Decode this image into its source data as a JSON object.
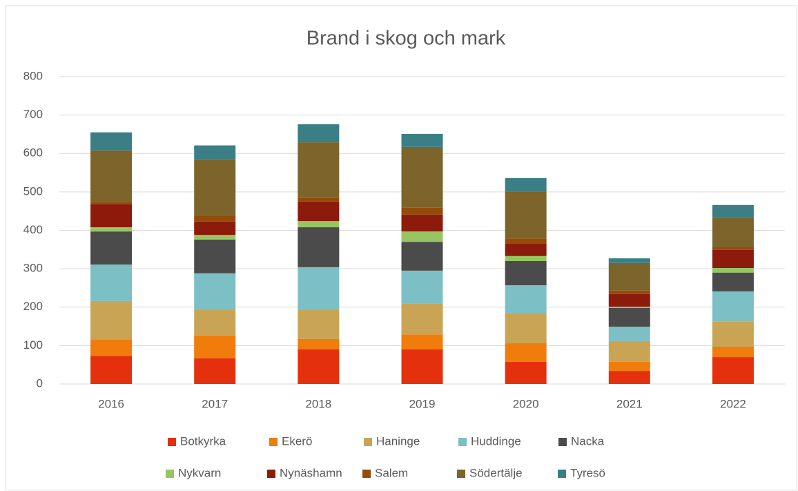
{
  "chart_data": {
    "type": "stacked-bar",
    "title": "Brand i skog och mark",
    "categories": [
      "2016",
      "2017",
      "2018",
      "2019",
      "2020",
      "2021",
      "2022"
    ],
    "series": [
      {
        "name": "Botkyrka",
        "color": "#e5300e",
        "values": [
          73,
          67,
          90,
          90,
          58,
          34,
          70
        ]
      },
      {
        "name": "Ekerö",
        "color": "#f07c0b",
        "values": [
          42,
          59,
          27,
          39,
          48,
          24,
          27
        ]
      },
      {
        "name": "Haninge",
        "color": "#c8a454",
        "values": [
          101,
          68,
          77,
          81,
          79,
          54,
          65
        ]
      },
      {
        "name": "Huddinge",
        "color": "#7cbfc5",
        "values": [
          95,
          94,
          110,
          85,
          72,
          37,
          79
        ]
      },
      {
        "name": "Nacka",
        "color": "#4b4b4b",
        "values": [
          86,
          88,
          104,
          75,
          63,
          49,
          49
        ]
      },
      {
        "name": "Nykvarn",
        "color": "#97c562",
        "values": [
          11,
          12,
          16,
          27,
          13,
          3,
          12
        ]
      },
      {
        "name": "Nynäshamn",
        "color": "#8c1b0c",
        "values": [
          60,
          35,
          51,
          44,
          32,
          33,
          47
        ]
      },
      {
        "name": "Salem",
        "color": "#944b07",
        "values": [
          5,
          16,
          9,
          18,
          14,
          9,
          7
        ]
      },
      {
        "name": "Södertälje",
        "color": "#7c642a",
        "values": [
          135,
          144,
          145,
          158,
          121,
          72,
          76
        ]
      },
      {
        "name": "Tyresö",
        "color": "#3b7e86",
        "values": [
          47,
          38,
          47,
          34,
          36,
          12,
          34
        ]
      }
    ],
    "ylim": [
      0,
      800
    ],
    "yticks": [
      0,
      100,
      200,
      300,
      400,
      500,
      600,
      700,
      800
    ],
    "grid": true,
    "legend": "bottom"
  }
}
